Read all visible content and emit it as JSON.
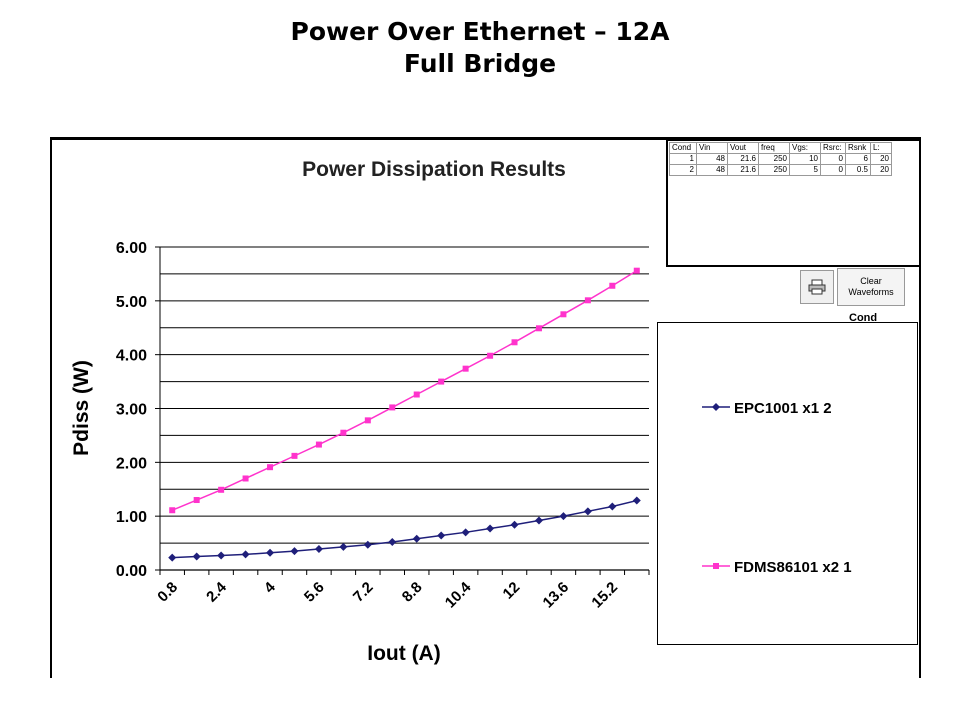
{
  "slide": {
    "title_line1": "Power Over Ethernet – 12A",
    "title_line2": "Full Bridge"
  },
  "conditions_table": {
    "headers": [
      "Cond",
      "Vin",
      "Vout",
      "freq",
      "Vgs:",
      "Rsrc:",
      "Rsnk",
      "L:"
    ],
    "rows": [
      [
        "1",
        "48",
        "21.6",
        "250",
        "10",
        "0",
        "6",
        "20"
      ],
      [
        "2",
        "48",
        "21.6",
        "250",
        "5",
        "0",
        "0.5",
        "20"
      ]
    ]
  },
  "controls": {
    "print_icon": "printer-icon",
    "clear_label": "Clear\nWaveforms",
    "cond_label": "Cond"
  },
  "chart_data": {
    "type": "line",
    "title": "Power Dissipation Results",
    "xlabel": "Iout (A)",
    "ylabel": "Pdiss (W)",
    "x_tick_labels": [
      "0.8",
      "2.4",
      "4",
      "5.6",
      "7.2",
      "8.8",
      "10.4",
      "12",
      "13.6",
      "15.2"
    ],
    "y_tick_labels": [
      "0.00",
      "1.00",
      "2.00",
      "3.00",
      "4.00",
      "5.00",
      "6.00"
    ],
    "ylim": [
      0,
      6
    ],
    "grid": true,
    "legend_position": "right",
    "x": [
      0.8,
      1.6,
      2.4,
      3.2,
      4.0,
      4.8,
      5.6,
      6.4,
      7.2,
      8.0,
      8.8,
      9.6,
      10.4,
      11.2,
      12.0,
      12.8,
      13.6,
      14.4,
      15.2,
      16.0
    ],
    "series": [
      {
        "name": "EPC1001 x1 2",
        "color": "#1f1f7a",
        "marker": "diamond",
        "values": [
          0.23,
          0.25,
          0.27,
          0.29,
          0.32,
          0.35,
          0.39,
          0.43,
          0.47,
          0.52,
          0.58,
          0.64,
          0.7,
          0.77,
          0.84,
          0.92,
          1.0,
          1.09,
          1.18,
          1.29
        ]
      },
      {
        "name": "FDMS86101 x2 1",
        "color": "#ff33cc",
        "marker": "square",
        "values": [
          1.11,
          1.3,
          1.49,
          1.7,
          1.91,
          2.12,
          2.33,
          2.55,
          2.78,
          3.02,
          3.26,
          3.5,
          3.74,
          3.98,
          4.23,
          4.49,
          4.75,
          5.01,
          5.28,
          5.56
        ]
      }
    ]
  }
}
